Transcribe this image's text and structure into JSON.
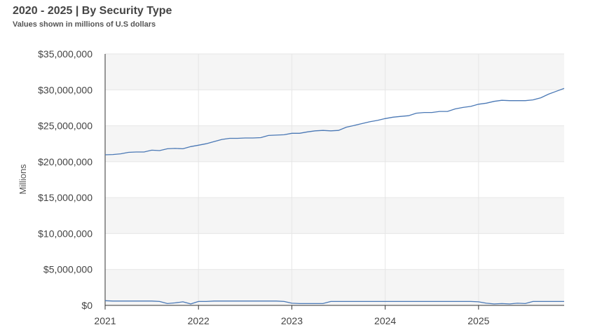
{
  "chart_data": {
    "type": "line",
    "title": "2020 - 2025 | By Security Type",
    "subtitle": "Values shown in millions of U.S dollars",
    "y_label": "Millions",
    "x": [
      2021,
      2021.083,
      2021.167,
      2021.25,
      2021.333,
      2021.417,
      2021.5,
      2021.583,
      2021.667,
      2021.75,
      2021.833,
      2021.917,
      2022,
      2022.083,
      2022.167,
      2022.25,
      2022.333,
      2022.417,
      2022.5,
      2022.583,
      2022.667,
      2022.75,
      2022.833,
      2022.917,
      2023,
      2023.083,
      2023.167,
      2023.25,
      2023.333,
      2023.417,
      2023.5,
      2023.583,
      2023.667,
      2023.75,
      2023.833,
      2023.917,
      2024,
      2024.083,
      2024.167,
      2024.25,
      2024.333,
      2024.417,
      2024.5,
      2024.583,
      2024.667,
      2024.75,
      2024.833,
      2024.917,
      2025,
      2025.083,
      2025.167,
      2025.25,
      2025.333,
      2025.417,
      2025.5,
      2025.583,
      2025.667,
      2025.75,
      2025.833,
      2025.917
    ],
    "series": [
      {
        "color": "#4a78b5",
        "values": [
          20960000,
          21000000,
          21100000,
          21300000,
          21350000,
          21350000,
          21600000,
          21550000,
          21800000,
          21850000,
          21800000,
          22100000,
          22300000,
          22500000,
          22800000,
          23100000,
          23250000,
          23250000,
          23300000,
          23300000,
          23350000,
          23650000,
          23700000,
          23750000,
          23950000,
          23950000,
          24150000,
          24300000,
          24350000,
          24300000,
          24350000,
          24800000,
          25050000,
          25300000,
          25550000,
          25750000,
          26000000,
          26200000,
          26300000,
          26400000,
          26750000,
          26850000,
          26850000,
          27000000,
          27000000,
          27350000,
          27550000,
          27700000,
          28000000,
          28150000,
          28400000,
          28550000,
          28500000,
          28500000,
          28500000,
          28600000,
          28900000,
          29400000,
          29800000,
          30200000
        ]
      },
      {
        "color": "#4a78b5",
        "values": [
          650000,
          600000,
          600000,
          600000,
          600000,
          600000,
          600000,
          550000,
          250000,
          350000,
          500000,
          200000,
          550000,
          550000,
          600000,
          600000,
          600000,
          600000,
          600000,
          600000,
          600000,
          600000,
          600000,
          550000,
          300000,
          250000,
          250000,
          250000,
          250000,
          550000,
          550000,
          550000,
          550000,
          550000,
          550000,
          550000,
          550000,
          550000,
          550000,
          550000,
          550000,
          550000,
          550000,
          550000,
          550000,
          550000,
          550000,
          550000,
          500000,
          300000,
          200000,
          250000,
          200000,
          300000,
          250000,
          550000,
          550000,
          550000,
          550000,
          550000
        ]
      }
    ],
    "xlim": [
      2021,
      2025.917
    ],
    "xticks": [
      2021,
      2022,
      2023,
      2024,
      2025
    ],
    "ylim": [
      0,
      35000000
    ],
    "yticks": [
      {
        "value": 0,
        "label": "$0"
      },
      {
        "value": 5000000,
        "label": "$5,000,000"
      },
      {
        "value": 10000000,
        "label": "$10,000,000"
      },
      {
        "value": 15000000,
        "label": "$15,000,000"
      },
      {
        "value": 20000000,
        "label": "$20,000,000"
      },
      {
        "value": 25000000,
        "label": "$25,000,000"
      },
      {
        "value": 30000000,
        "label": "$30,000,000"
      },
      {
        "value": 35000000,
        "label": "$35,000,000"
      }
    ],
    "grid": true
  }
}
